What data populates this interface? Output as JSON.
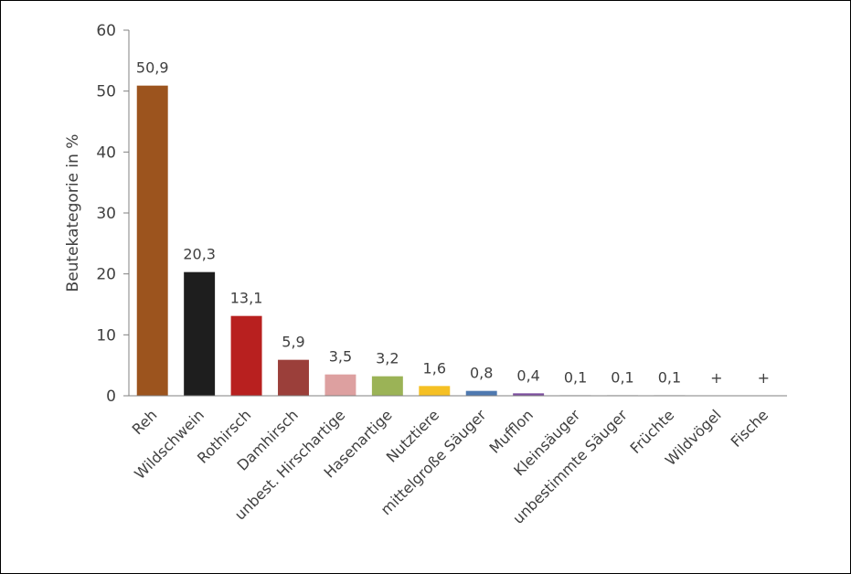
{
  "chart_data": {
    "type": "bar",
    "title": "",
    "xlabel": "",
    "ylabel": "Beutekategorie in %",
    "ylim": [
      0,
      60
    ],
    "yticks": [
      0,
      10,
      20,
      30,
      40,
      50,
      60
    ],
    "grid": false,
    "legend": "none",
    "categories": [
      "Reh",
      "Wildschwein",
      "Rothirsch",
      "Damhirsch",
      "unbest. Hirschartige",
      "Hasenartige",
      "Nutztiere",
      "mittelgroße Säuger",
      "Mufflon",
      "Kleinsäuger",
      "unbestimmte Säuger",
      "Früchte",
      "Wildvögel",
      "Fische"
    ],
    "values": [
      50.9,
      20.3,
      13.1,
      5.9,
      3.5,
      3.2,
      1.6,
      0.8,
      0.4,
      0.1,
      0.1,
      0.1,
      0,
      0
    ],
    "data_labels": [
      "50,9",
      "20,3",
      "13,1",
      "5,9",
      "3,5",
      "3,2",
      "1,6",
      "0,8",
      "0,4",
      "0,1",
      "0,1",
      "0,1",
      "+",
      "+"
    ],
    "colors": [
      "#9C541E",
      "#1E1E1E",
      "#B8201F",
      "#9B3F3A",
      "#DDA0A0",
      "#9BB356",
      "#F5C024",
      "#4E79B0",
      "#7E4FA0",
      "#cccccc",
      "#cccccc",
      "#cccccc",
      "#cccccc",
      "#cccccc"
    ]
  }
}
